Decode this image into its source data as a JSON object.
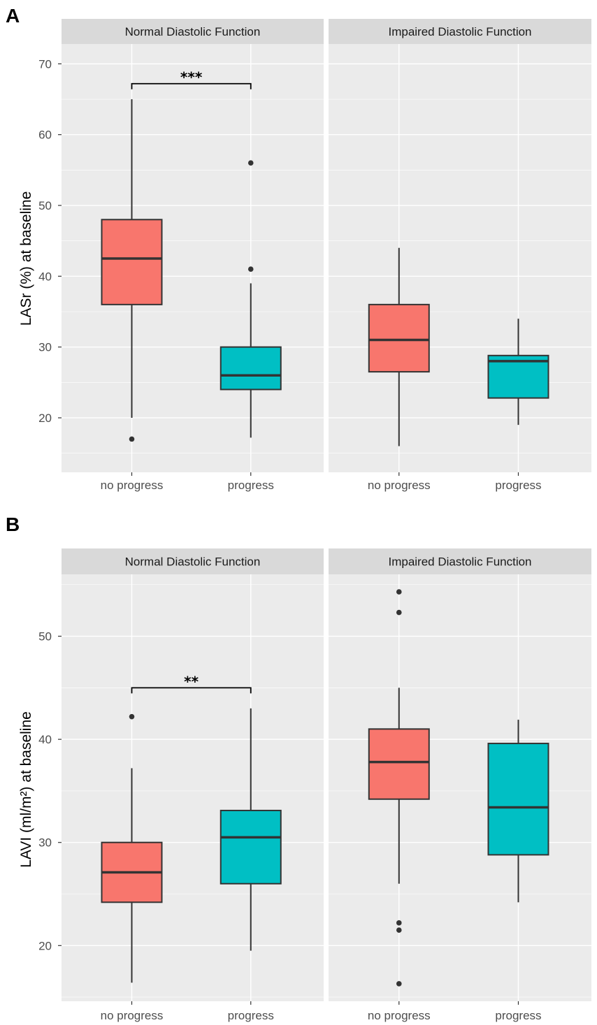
{
  "colors": {
    "no_progress": "#F8766D",
    "progress": "#00BFC4",
    "panel_bg": "#EBEBEB",
    "strip_bg": "#D9D9D9",
    "box_line": "#333333"
  },
  "chart_data": [
    {
      "type": "box",
      "panel_label": "A",
      "ylabel": "LASr (%) at baseline",
      "ylim": [
        12.3,
        72.8
      ],
      "yticks": [
        20,
        30,
        40,
        50,
        60,
        70
      ],
      "yminor": [
        15,
        25,
        35,
        45,
        55,
        65
      ],
      "categories": [
        "no progress",
        "progress"
      ],
      "facets": [
        {
          "title": "Normal Diastolic Function",
          "boxes": [
            {
              "category": "no progress",
              "whisker_low": 20,
              "q1": 36,
              "median": 42.5,
              "q3": 48,
              "whisker_high": 65,
              "outliers": [
                17
              ]
            },
            {
              "category": "progress",
              "whisker_low": 17.2,
              "q1": 24,
              "median": 26,
              "q3": 30,
              "whisker_high": 39,
              "outliers": [
                41,
                56
              ]
            }
          ],
          "significance": {
            "label": "***",
            "y": 67.2
          }
        },
        {
          "title": "Impaired Diastolic Function",
          "boxes": [
            {
              "category": "no progress",
              "whisker_low": 16,
              "q1": 26.5,
              "median": 31,
              "q3": 36,
              "whisker_high": 44,
              "outliers": []
            },
            {
              "category": "progress",
              "whisker_low": 19,
              "q1": 22.8,
              "median": 28,
              "q3": 28.8,
              "whisker_high": 34,
              "outliers": []
            }
          ]
        }
      ]
    },
    {
      "type": "box",
      "panel_label": "B",
      "ylabel": "LAVI (ml/m²) at baseline",
      "ylim": [
        14.6,
        56.0
      ],
      "yticks": [
        20,
        30,
        40,
        50
      ],
      "yminor": [
        15,
        25,
        35,
        45,
        55
      ],
      "categories": [
        "no progress",
        "progress"
      ],
      "facets": [
        {
          "title": "Normal Diastolic Function",
          "boxes": [
            {
              "category": "no progress",
              "whisker_low": 16.4,
              "q1": 24.2,
              "median": 27.1,
              "q3": 30,
              "whisker_high": 37.2,
              "outliers": [
                42.2
              ]
            },
            {
              "category": "progress",
              "whisker_low": 19.5,
              "q1": 26,
              "median": 30.5,
              "q3": 33.1,
              "whisker_high": 43,
              "outliers": []
            }
          ],
          "significance": {
            "label": "**",
            "y": 45
          }
        },
        {
          "title": "Impaired Diastolic Function",
          "boxes": [
            {
              "category": "no progress",
              "whisker_low": 26,
              "q1": 34.2,
              "median": 37.8,
              "q3": 41,
              "whisker_high": 45,
              "outliers": [
                16.3,
                21.5,
                22.2,
                52.3,
                54.3
              ]
            },
            {
              "category": "progress",
              "whisker_low": 24.2,
              "q1": 28.8,
              "median": 33.4,
              "q3": 39.6,
              "whisker_high": 41.9,
              "outliers": []
            }
          ]
        }
      ]
    }
  ]
}
